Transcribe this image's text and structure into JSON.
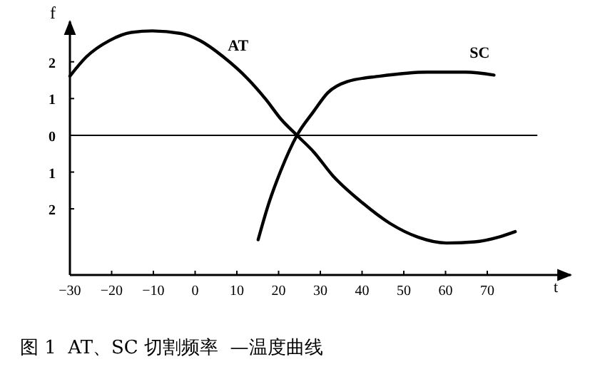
{
  "chart_data": {
    "type": "line",
    "xlabel": "t",
    "ylabel": "f",
    "xlim": [
      -30,
      90
    ],
    "ylim": [
      -3.8,
      3.1
    ],
    "xticks": [
      -30,
      -20,
      -10,
      0,
      10,
      20,
      30,
      40,
      50,
      60,
      70
    ],
    "yticks": [
      {
        "value": -2,
        "label": "2"
      },
      {
        "value": -1,
        "label": "1"
      },
      0,
      1,
      2
    ],
    "series": [
      {
        "name": "AT",
        "color": "#000000",
        "x": [
          -30,
          -26.1,
          -20.5,
          -15.3,
          -10.2,
          -3.4,
          1.1,
          6.8,
          12.5,
          17,
          20.5,
          24.4,
          28.4,
          33,
          39.8,
          46.6,
          53.4,
          60.2,
          67,
          72.7,
          76.7
        ],
        "values": [
          1.61,
          2.13,
          2.58,
          2.8,
          2.84,
          2.77,
          2.58,
          2.13,
          1.55,
          0.97,
          0.45,
          0,
          -0.45,
          -1.1,
          -1.81,
          -2.39,
          -2.77,
          -2.93,
          -2.9,
          -2.77,
          -2.62
        ]
      },
      {
        "name": "SC",
        "color": "#000000",
        "x": [
          15.1,
          17.6,
          20.5,
          24.4,
          28.4,
          31.8,
          36.4,
          44.3,
          55.7,
          64.8,
          71.6
        ],
        "values": [
          -2.84,
          -1.87,
          -0.97,
          0,
          0.65,
          1.16,
          1.46,
          1.61,
          1.72,
          1.72,
          1.64
        ]
      }
    ],
    "ref_lines": [
      {
        "axis": "y",
        "value": 0,
        "color": "#000000"
      }
    ],
    "annotations": [
      "图 1  AT、SC 切割频率  —温度曲线"
    ],
    "grid": false,
    "legend": false,
    "marker": "none",
    "line_style": "solid"
  }
}
